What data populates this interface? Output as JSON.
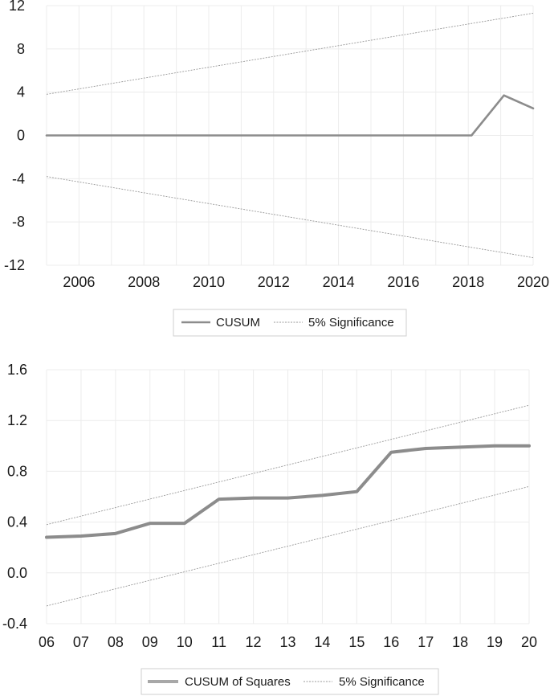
{
  "chart_data": [
    {
      "type": "line",
      "title": "",
      "xlabel": "",
      "ylabel": "",
      "x_min": 2005,
      "x_max": 2020,
      "ylim": [
        -12,
        12
      ],
      "y_ticks": [
        12,
        8,
        4,
        0,
        -4,
        -8,
        -12
      ],
      "y_tick_labels": [
        "12",
        "8",
        "4",
        "0",
        "-4",
        "-8",
        "-12"
      ],
      "x_ticks": [
        2006,
        2008,
        2010,
        2012,
        2014,
        2016,
        2018,
        2020
      ],
      "x_tick_labels": [
        "2006",
        "2008",
        "2010",
        "2012",
        "2014",
        "2016",
        "2018",
        "2020"
      ],
      "grid": true,
      "series": [
        {
          "name": "CUSUM",
          "x": [
            2005,
            2018.1,
            2019.1,
            2020
          ],
          "values": [
            0,
            0,
            3.7,
            2.5
          ]
        },
        {
          "name": "5% Significance",
          "x": [
            2005,
            2020
          ],
          "values": [
            3.8,
            11.3
          ]
        },
        {
          "name": "5% Significance",
          "x": [
            2005,
            2020
          ],
          "values": [
            -3.8,
            -11.3
          ]
        }
      ],
      "legend": {
        "position": "bottom",
        "entries": [
          "CUSUM",
          "5% Significance"
        ]
      }
    },
    {
      "type": "line",
      "title": "",
      "xlabel": "",
      "ylabel": "",
      "x_min": 6,
      "x_max": 20,
      "ylim": [
        -0.4,
        1.6
      ],
      "y_ticks": [
        1.6,
        1.2,
        0.8,
        0.4,
        0.0,
        -0.4
      ],
      "y_tick_labels": [
        "1.6",
        "1.2",
        "0.8",
        "0.4",
        "0.0",
        "-0.4"
      ],
      "categories": [
        "06",
        "07",
        "08",
        "09",
        "10",
        "11",
        "12",
        "13",
        "14",
        "15",
        "16",
        "17",
        "18",
        "19",
        "20"
      ],
      "grid": true,
      "series": [
        {
          "name": "CUSUM of Squares",
          "x": [
            6,
            7,
            8,
            9,
            10,
            11,
            12,
            13,
            14,
            15,
            16,
            17,
            18,
            19,
            20
          ],
          "values": [
            0.28,
            0.29,
            0.31,
            0.39,
            0.39,
            0.58,
            0.59,
            0.59,
            0.61,
            0.64,
            0.95,
            0.98,
            0.99,
            1.0,
            1.0
          ]
        },
        {
          "name": "5% Significance",
          "x": [
            6,
            20
          ],
          "values": [
            0.38,
            1.32
          ]
        },
        {
          "name": "5% Significance",
          "x": [
            6,
            20
          ],
          "values": [
            -0.26,
            0.68
          ]
        }
      ],
      "legend": {
        "position": "bottom",
        "entries": [
          "CUSUM of Squares",
          "5% Significance"
        ]
      }
    }
  ]
}
